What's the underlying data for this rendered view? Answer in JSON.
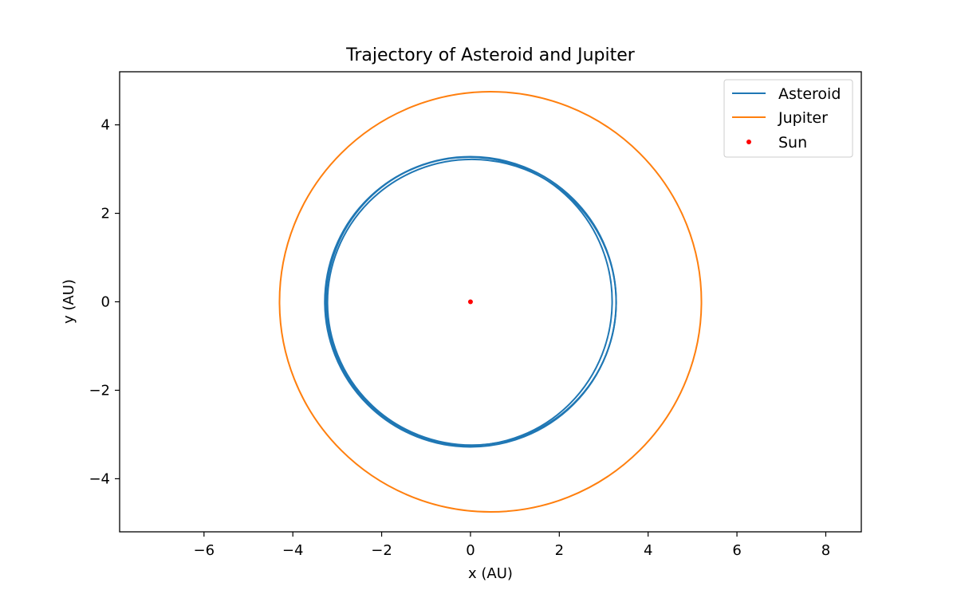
{
  "chart_data": {
    "type": "line",
    "title": "Trajectory of Asteroid and Jupiter",
    "xlabel": "x (AU)",
    "ylabel": "y (AU)",
    "xlim": [
      -7.9,
      8.8
    ],
    "ylim": [
      -5.2,
      5.2
    ],
    "xticks": [
      -6,
      -4,
      -2,
      0,
      2,
      4,
      6,
      8
    ],
    "yticks": [
      -4,
      -2,
      0,
      2,
      4
    ],
    "grid": false,
    "legend_position": "top-right",
    "series": [
      {
        "name": "Asteroid",
        "color": "#1f77b4",
        "kind": "orbit",
        "orbits": [
          {
            "center": [
              0.0,
              0.0
            ],
            "rx": 3.28,
            "ry": 3.28
          },
          {
            "center": [
              -0.03,
              0.01
            ],
            "rx": 3.22,
            "ry": 3.26
          },
          {
            "center": [
              0.03,
              -0.01
            ],
            "rx": 3.25,
            "ry": 3.23
          }
        ]
      },
      {
        "name": "Jupiter",
        "color": "#ff7f0e",
        "kind": "orbit",
        "orbits": [
          {
            "center": [
              0.45,
              0.0
            ],
            "rx": 4.75,
            "ry": 4.75
          }
        ]
      },
      {
        "name": "Sun",
        "color": "#ff0000",
        "kind": "point",
        "points": [
          [
            0,
            0
          ]
        ]
      }
    ]
  }
}
